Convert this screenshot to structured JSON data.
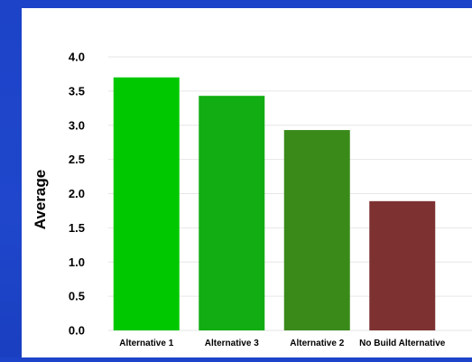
{
  "chart_data": {
    "type": "bar",
    "title": "",
    "xlabel": "",
    "ylabel": "Average",
    "ylim": [
      0,
      4.0
    ],
    "yticks": [
      "0.0",
      "0.5",
      "1.0",
      "1.5",
      "2.0",
      "2.5",
      "3.0",
      "3.5",
      "4.0"
    ],
    "categories": [
      "Alternative 1",
      "Alternative 3",
      "Alternative 2",
      "No Build Alternative"
    ],
    "values": [
      3.7,
      3.43,
      2.93,
      1.89
    ],
    "colors": [
      "#00c800",
      "#12ad12",
      "#3a8a1a",
      "#7e3131"
    ],
    "grid": true
  }
}
